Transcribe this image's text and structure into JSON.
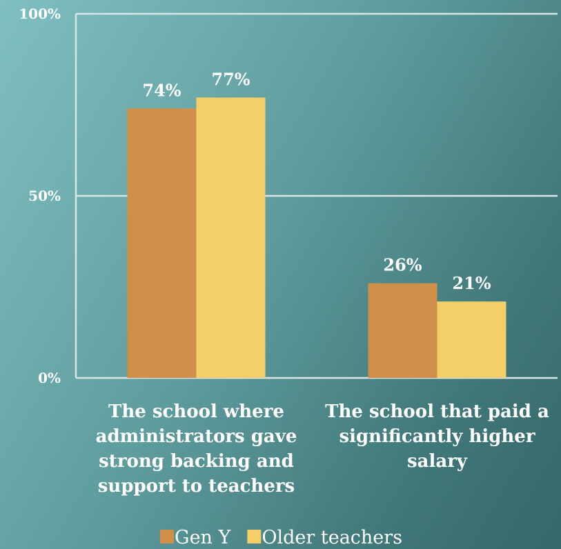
{
  "chart_data": {
    "type": "bar",
    "categories": [
      "The school where administrators gave strong backing and support to teachers",
      "The school that paid a significantly higher salary"
    ],
    "category_lines": [
      [
        "The school where",
        "administrators gave",
        "strong backing and",
        "support to teachers"
      ],
      [
        "The school that paid a",
        "significantly higher",
        "salary"
      ]
    ],
    "series": [
      {
        "name": "Gen Y",
        "values": [
          74,
          26
        ],
        "labels": [
          "74%",
          "26%"
        ],
        "color": "#d08f48"
      },
      {
        "name": "Older teachers",
        "values": [
          77,
          21
        ],
        "labels": [
          "77%",
          "21%"
        ],
        "color": "#f4ce69"
      }
    ],
    "y_ticks": [
      {
        "value": 0,
        "label": "0%"
      },
      {
        "value": 50,
        "label": "50%"
      },
      {
        "value": 100,
        "label": "100%"
      }
    ],
    "ylim": [
      0,
      100
    ],
    "grid": true,
    "legend": "bottom",
    "title": "",
    "xlabel": "",
    "ylabel": ""
  }
}
